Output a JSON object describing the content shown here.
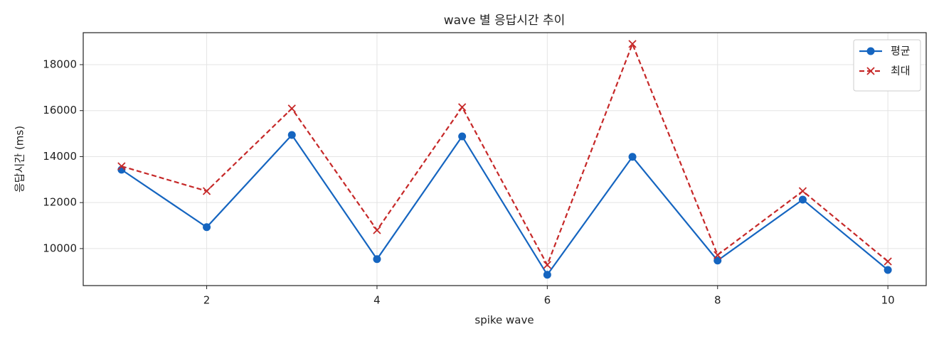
{
  "chart_data": {
    "type": "line",
    "title": "wave 별 응답시간 추이",
    "xlabel": "spike wave",
    "ylabel": "응답시간 (ms)",
    "x": [
      1,
      2,
      3,
      4,
      5,
      6,
      7,
      8,
      9,
      10
    ],
    "series": [
      {
        "name": "평균",
        "color": "#1565c0",
        "marker": "o",
        "linestyle": "solid",
        "values": [
          13430,
          10930,
          14940,
          9540,
          14880,
          8860,
          13990,
          9480,
          12130,
          9070
        ]
      },
      {
        "name": "최대",
        "color": "#c62828",
        "marker": "x",
        "linestyle": "dashed",
        "values": [
          13580,
          12500,
          16090,
          10800,
          16150,
          9290,
          18900,
          9720,
          12500,
          9440
        ]
      }
    ],
    "xlim": [
      0.55,
      10.45
    ],
    "ylim": [
      8390,
      19390
    ],
    "xticks": [
      2,
      4,
      6,
      8,
      10
    ],
    "yticks": [
      10000,
      12000,
      14000,
      16000,
      18000
    ],
    "grid": true,
    "legend": "upper right"
  }
}
